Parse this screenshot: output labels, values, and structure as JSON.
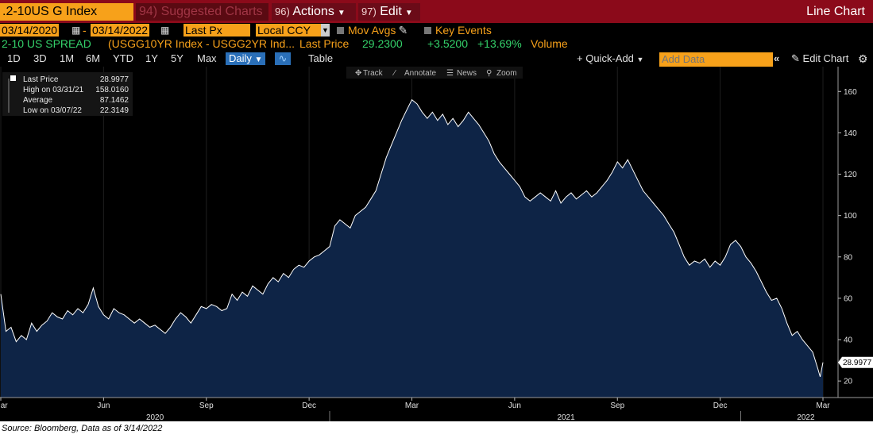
{
  "header": {
    "ticker": ".2-10US G Index",
    "suggested": {
      "num": "94)",
      "label": "Suggested Charts"
    },
    "actions": {
      "num": "96)",
      "label": "Actions"
    },
    "edit": {
      "num": "97)",
      "label": "Edit"
    },
    "chart_type": "Line Chart"
  },
  "controls": {
    "start_date": "03/14/2020",
    "end_date": "03/14/2022",
    "date_separator": "-",
    "field": "Last Px",
    "currency": "Local CCY",
    "mov_avgs": "Mov Avgs",
    "key_events": "Key Events"
  },
  "security": {
    "name": "2-10 US SPREAD",
    "desc": "(USGG10YR Index - USGG2YR Ind...",
    "last_price_label": "Last Price",
    "last_price": "29.2300",
    "change": "+3.5200",
    "change_pct": "+13.69%",
    "volume_label": "Volume"
  },
  "periods": [
    "1D",
    "3D",
    "1M",
    "6M",
    "YTD",
    "1Y",
    "5Y",
    "Max"
  ],
  "frequency": "Daily",
  "table_label": "Table",
  "quick_add": "Quick-Add",
  "add_data_placeholder": "Add Data",
  "edit_chart": "Edit Chart",
  "tools": [
    "Track",
    "Annotate",
    "News",
    "Zoom"
  ],
  "legend": [
    {
      "label": "Last Price",
      "value": "28.9977"
    },
    {
      "label": "High on 03/31/21",
      "value": "158.0160"
    },
    {
      "label": "Average",
      "value": "87.1462"
    },
    {
      "label": "Low on 03/07/22",
      "value": "22.3149"
    }
  ],
  "last_value_tag": "28.9977",
  "source": "Source: Bloomberg, Data as of 3/14/2022",
  "colors": {
    "header_bg": "#8b0a1a",
    "accent": "#f7a11a",
    "positive": "#34d16a",
    "area_fill": "#0e2446",
    "line": "#ffffff"
  },
  "chart_data": {
    "type": "area",
    "y_ticks": [
      20,
      40,
      60,
      80,
      100,
      120,
      140,
      160
    ],
    "ylim": [
      12,
      172
    ],
    "x_month_labels": [
      "Mar",
      "Jun",
      "Sep",
      "Dec",
      "Mar",
      "Jun",
      "Sep",
      "Dec",
      "Mar"
    ],
    "x_year_labels": [
      "2020",
      "2021",
      "2022"
    ],
    "month_index": [
      0,
      3,
      6,
      9,
      12,
      15,
      18,
      21,
      24
    ],
    "year_index": [
      4.5,
      16.5,
      23.5
    ],
    "year_dividers": [
      9.6,
      21.6
    ],
    "xlim": [
      0,
      24
    ],
    "series": [
      {
        "values": [
          [
            0.0,
            62
          ],
          [
            0.15,
            44
          ],
          [
            0.3,
            46
          ],
          [
            0.45,
            39
          ],
          [
            0.6,
            42
          ],
          [
            0.75,
            40
          ],
          [
            0.9,
            48
          ],
          [
            1.05,
            44
          ],
          [
            1.2,
            47
          ],
          [
            1.35,
            49
          ],
          [
            1.5,
            53
          ],
          [
            1.65,
            51
          ],
          [
            1.8,
            50
          ],
          [
            1.95,
            54
          ],
          [
            2.1,
            52
          ],
          [
            2.25,
            55
          ],
          [
            2.4,
            53
          ],
          [
            2.55,
            57
          ],
          [
            2.7,
            65
          ],
          [
            2.85,
            56
          ],
          [
            3.0,
            52
          ],
          [
            3.15,
            50
          ],
          [
            3.3,
            55
          ],
          [
            3.45,
            53
          ],
          [
            3.6,
            52
          ],
          [
            3.75,
            50
          ],
          [
            3.9,
            48
          ],
          [
            4.05,
            50
          ],
          [
            4.2,
            48
          ],
          [
            4.35,
            46
          ],
          [
            4.5,
            47
          ],
          [
            4.65,
            45
          ],
          [
            4.8,
            43
          ],
          [
            4.95,
            46
          ],
          [
            5.1,
            50
          ],
          [
            5.25,
            53
          ],
          [
            5.4,
            51
          ],
          [
            5.55,
            48
          ],
          [
            5.7,
            52
          ],
          [
            5.85,
            56
          ],
          [
            6.0,
            55
          ],
          [
            6.15,
            57
          ],
          [
            6.3,
            56
          ],
          [
            6.45,
            54
          ],
          [
            6.6,
            55
          ],
          [
            6.75,
            62
          ],
          [
            6.9,
            59
          ],
          [
            7.05,
            63
          ],
          [
            7.2,
            61
          ],
          [
            7.35,
            66
          ],
          [
            7.5,
            64
          ],
          [
            7.65,
            62
          ],
          [
            7.8,
            67
          ],
          [
            7.95,
            70
          ],
          [
            8.1,
            68
          ],
          [
            8.25,
            72
          ],
          [
            8.4,
            70
          ],
          [
            8.55,
            74
          ],
          [
            8.7,
            76
          ],
          [
            8.85,
            75
          ],
          [
            9.0,
            78
          ],
          [
            9.15,
            80
          ],
          [
            9.3,
            81
          ],
          [
            9.45,
            83
          ],
          [
            9.6,
            85
          ],
          [
            9.75,
            95
          ],
          [
            9.9,
            98
          ],
          [
            10.05,
            96
          ],
          [
            10.2,
            94
          ],
          [
            10.35,
            100
          ],
          [
            10.5,
            102
          ],
          [
            10.65,
            104
          ],
          [
            10.8,
            108
          ],
          [
            10.95,
            112
          ],
          [
            11.1,
            120
          ],
          [
            11.25,
            128
          ],
          [
            11.4,
            134
          ],
          [
            11.55,
            140
          ],
          [
            11.7,
            146
          ],
          [
            11.85,
            151
          ],
          [
            12.0,
            156
          ],
          [
            12.15,
            154
          ],
          [
            12.3,
            150
          ],
          [
            12.45,
            147
          ],
          [
            12.6,
            150
          ],
          [
            12.75,
            146
          ],
          [
            12.9,
            149
          ],
          [
            13.05,
            144
          ],
          [
            13.2,
            147
          ],
          [
            13.35,
            143
          ],
          [
            13.5,
            146
          ],
          [
            13.65,
            150
          ],
          [
            13.8,
            147
          ],
          [
            13.95,
            144
          ],
          [
            14.1,
            140
          ],
          [
            14.25,
            136
          ],
          [
            14.4,
            130
          ],
          [
            14.55,
            126
          ],
          [
            14.7,
            123
          ],
          [
            14.85,
            120
          ],
          [
            15.0,
            117
          ],
          [
            15.15,
            114
          ],
          [
            15.3,
            109
          ],
          [
            15.45,
            107
          ],
          [
            15.6,
            109
          ],
          [
            15.75,
            111
          ],
          [
            15.9,
            109
          ],
          [
            16.05,
            107
          ],
          [
            16.2,
            112
          ],
          [
            16.35,
            106
          ],
          [
            16.5,
            109
          ],
          [
            16.65,
            111
          ],
          [
            16.8,
            108
          ],
          [
            16.95,
            110
          ],
          [
            17.1,
            112
          ],
          [
            17.25,
            109
          ],
          [
            17.4,
            111
          ],
          [
            17.55,
            114
          ],
          [
            17.7,
            117
          ],
          [
            17.85,
            121
          ],
          [
            18.0,
            126
          ],
          [
            18.15,
            123
          ],
          [
            18.3,
            127
          ],
          [
            18.45,
            122
          ],
          [
            18.6,
            117
          ],
          [
            18.75,
            112
          ],
          [
            18.9,
            109
          ],
          [
            19.05,
            106
          ],
          [
            19.2,
            103
          ],
          [
            19.35,
            100
          ],
          [
            19.5,
            96
          ],
          [
            19.65,
            92
          ],
          [
            19.8,
            86
          ],
          [
            19.95,
            80
          ],
          [
            20.1,
            76
          ],
          [
            20.25,
            78
          ],
          [
            20.4,
            77
          ],
          [
            20.55,
            79
          ],
          [
            20.7,
            75
          ],
          [
            20.85,
            78
          ],
          [
            21.0,
            76
          ],
          [
            21.15,
            80
          ],
          [
            21.3,
            86
          ],
          [
            21.45,
            88
          ],
          [
            21.6,
            85
          ],
          [
            21.75,
            80
          ],
          [
            21.9,
            77
          ],
          [
            22.05,
            73
          ],
          [
            22.2,
            68
          ],
          [
            22.35,
            63
          ],
          [
            22.5,
            59
          ],
          [
            22.65,
            60
          ],
          [
            22.8,
            55
          ],
          [
            22.95,
            48
          ],
          [
            23.1,
            42
          ],
          [
            23.25,
            44
          ],
          [
            23.4,
            40
          ],
          [
            23.55,
            37
          ],
          [
            23.7,
            34
          ],
          [
            23.85,
            26
          ],
          [
            23.92,
            22
          ],
          [
            24.0,
            29
          ]
        ]
      }
    ]
  }
}
